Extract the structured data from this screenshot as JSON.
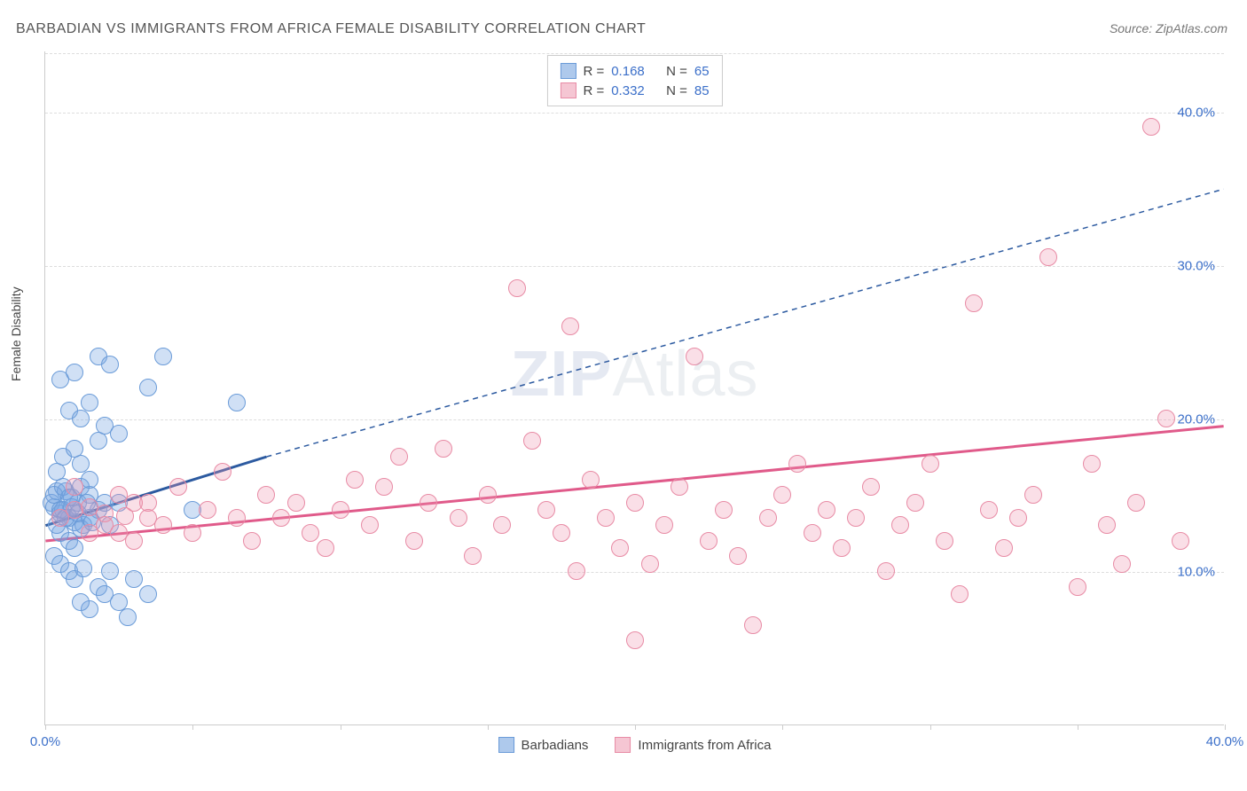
{
  "title": "BARBADIAN VS IMMIGRANTS FROM AFRICA FEMALE DISABILITY CORRELATION CHART",
  "source": "Source: ZipAtlas.com",
  "ylabel": "Female Disability",
  "watermark_bold": "ZIP",
  "watermark_light": "Atlas",
  "chart": {
    "type": "scatter",
    "xlim": [
      0,
      40
    ],
    "ylim": [
      0,
      44
    ],
    "yticks": [
      {
        "value": 10,
        "label": "10.0%"
      },
      {
        "value": 20,
        "label": "20.0%"
      },
      {
        "value": 30,
        "label": "30.0%"
      },
      {
        "value": 40,
        "label": "40.0%"
      }
    ],
    "xticks": [
      0,
      5,
      10,
      15,
      20,
      25,
      30,
      35,
      40
    ],
    "xtick_labels": [
      {
        "value": 0,
        "label": "0.0%"
      },
      {
        "value": 40,
        "label": "40.0%"
      }
    ],
    "grid_color": "#dddddd",
    "background": "#ffffff",
    "axis_color": "#cccccc",
    "tick_label_color": "#3b6fc9",
    "marker_radius": 10,
    "series": [
      {
        "name": "Barbadians",
        "fill": "rgba(120,165,225,0.35)",
        "stroke": "#6a9bd8",
        "swatch_fill": "#aec9ec",
        "swatch_stroke": "#6a9bd8",
        "trend_color": "#2c5aa0",
        "R": "0.168",
        "N": "65",
        "trend": {
          "x1": 0,
          "y1": 13.0,
          "x2": 7.5,
          "y2": 17.5,
          "dash_to_x": 40,
          "dash_to_y": 35.0
        },
        "points": [
          [
            0.2,
            14.5
          ],
          [
            0.3,
            14.2
          ],
          [
            0.4,
            15.2
          ],
          [
            0.5,
            13.8
          ],
          [
            0.6,
            14.0
          ],
          [
            0.7,
            15.2
          ],
          [
            0.8,
            13.5
          ],
          [
            0.9,
            14.8
          ],
          [
            1.0,
            13.2
          ],
          [
            1.1,
            14.5
          ],
          [
            1.2,
            15.5
          ],
          [
            1.3,
            13.0
          ],
          [
            0.5,
            12.5
          ],
          [
            0.8,
            12.0
          ],
          [
            1.0,
            11.5
          ],
          [
            1.2,
            12.8
          ],
          [
            1.5,
            13.5
          ],
          [
            1.8,
            14.0
          ],
          [
            2.0,
            14.5
          ],
          [
            1.5,
            15.0
          ],
          [
            2.2,
            13.0
          ],
          [
            2.5,
            14.5
          ],
          [
            0.4,
            16.5
          ],
          [
            0.6,
            17.5
          ],
          [
            1.0,
            18.0
          ],
          [
            1.2,
            17.0
          ],
          [
            1.5,
            16.0
          ],
          [
            1.8,
            18.5
          ],
          [
            2.0,
            19.5
          ],
          [
            0.8,
            20.5
          ],
          [
            1.2,
            20.0
          ],
          [
            1.5,
            21.0
          ],
          [
            2.5,
            19.0
          ],
          [
            0.5,
            22.5
          ],
          [
            1.0,
            23.0
          ],
          [
            1.8,
            24.0
          ],
          [
            2.2,
            23.5
          ],
          [
            4.0,
            24.0
          ],
          [
            3.5,
            22.0
          ],
          [
            6.5,
            21.0
          ],
          [
            5.0,
            14.0
          ],
          [
            0.3,
            11.0
          ],
          [
            0.5,
            10.5
          ],
          [
            0.8,
            10.0
          ],
          [
            1.0,
            9.5
          ],
          [
            1.3,
            10.2
          ],
          [
            1.8,
            9.0
          ],
          [
            2.0,
            8.5
          ],
          [
            2.5,
            8.0
          ],
          [
            1.5,
            7.5
          ],
          [
            2.8,
            7.0
          ],
          [
            3.0,
            9.5
          ],
          [
            3.5,
            8.5
          ],
          [
            2.2,
            10.0
          ],
          [
            1.2,
            8.0
          ],
          [
            0.5,
            14.0
          ],
          [
            0.7,
            13.5
          ],
          [
            0.9,
            14.2
          ],
          [
            1.1,
            13.8
          ],
          [
            1.4,
            14.5
          ],
          [
            1.6,
            13.2
          ],
          [
            0.3,
            15.0
          ],
          [
            0.4,
            13.0
          ],
          [
            0.6,
            15.5
          ],
          [
            0.8,
            14.8
          ]
        ]
      },
      {
        "name": "Immigrants from Africa",
        "fill": "rgba(240,150,175,0.30)",
        "stroke": "#e88ba5",
        "swatch_fill": "#f5c6d3",
        "swatch_stroke": "#e88ba5",
        "trend_color": "#e05a8a",
        "R": "0.332",
        "N": "85",
        "trend": {
          "x1": 0,
          "y1": 12.0,
          "x2": 40,
          "y2": 19.5
        },
        "points": [
          [
            0.5,
            13.5
          ],
          [
            1.0,
            14.0
          ],
          [
            1.5,
            12.5
          ],
          [
            2.0,
            13.8
          ],
          [
            2.5,
            15.0
          ],
          [
            2.7,
            13.6
          ],
          [
            3.0,
            12.0
          ],
          [
            3.5,
            14.5
          ],
          [
            4.0,
            13.0
          ],
          [
            4.5,
            15.5
          ],
          [
            5.0,
            12.5
          ],
          [
            5.5,
            14.0
          ],
          [
            6.0,
            16.5
          ],
          [
            6.5,
            13.5
          ],
          [
            7.0,
            12.0
          ],
          [
            7.5,
            15.0
          ],
          [
            8.0,
            13.5
          ],
          [
            8.5,
            14.5
          ],
          [
            9.0,
            12.5
          ],
          [
            9.5,
            11.5
          ],
          [
            10.0,
            14.0
          ],
          [
            10.5,
            16.0
          ],
          [
            11.0,
            13.0
          ],
          [
            11.5,
            15.5
          ],
          [
            12.0,
            17.5
          ],
          [
            12.5,
            12.0
          ],
          [
            13.0,
            14.5
          ],
          [
            13.5,
            18.0
          ],
          [
            14.0,
            13.5
          ],
          [
            14.5,
            11.0
          ],
          [
            15.0,
            15.0
          ],
          [
            15.5,
            13.0
          ],
          [
            16.0,
            28.5
          ],
          [
            16.5,
            18.5
          ],
          [
            17.0,
            14.0
          ],
          [
            17.5,
            12.5
          ],
          [
            17.8,
            26.0
          ],
          [
            18.0,
            10.0
          ],
          [
            18.5,
            16.0
          ],
          [
            19.0,
            13.5
          ],
          [
            19.5,
            11.5
          ],
          [
            20.0,
            14.5
          ],
          [
            20.5,
            10.5
          ],
          [
            21.0,
            13.0
          ],
          [
            21.5,
            15.5
          ],
          [
            22.0,
            24.0
          ],
          [
            22.5,
            12.0
          ],
          [
            23.0,
            14.0
          ],
          [
            23.5,
            11.0
          ],
          [
            24.0,
            6.5
          ],
          [
            20.0,
            5.5
          ],
          [
            24.5,
            13.5
          ],
          [
            25.0,
            15.0
          ],
          [
            25.5,
            17.0
          ],
          [
            26.0,
            12.5
          ],
          [
            26.5,
            14.0
          ],
          [
            27.0,
            11.5
          ],
          [
            27.5,
            13.5
          ],
          [
            28.0,
            15.5
          ],
          [
            28.5,
            10.0
          ],
          [
            29.0,
            13.0
          ],
          [
            29.5,
            14.5
          ],
          [
            30.0,
            17.0
          ],
          [
            30.5,
            12.0
          ],
          [
            31.0,
            8.5
          ],
          [
            31.5,
            27.5
          ],
          [
            32.0,
            14.0
          ],
          [
            32.5,
            11.5
          ],
          [
            33.0,
            13.5
          ],
          [
            33.5,
            15.0
          ],
          [
            34.0,
            30.5
          ],
          [
            35.0,
            9.0
          ],
          [
            35.5,
            17.0
          ],
          [
            36.0,
            13.0
          ],
          [
            36.5,
            10.5
          ],
          [
            37.0,
            14.5
          ],
          [
            37.5,
            39.0
          ],
          [
            38.0,
            20.0
          ],
          [
            38.5,
            12.0
          ],
          [
            1.0,
            15.5
          ],
          [
            1.5,
            14.2
          ],
          [
            2.0,
            13.0
          ],
          [
            2.5,
            12.5
          ],
          [
            3.0,
            14.5
          ],
          [
            3.5,
            13.5
          ]
        ]
      }
    ]
  },
  "legend_top": {
    "r_label": "R  =",
    "n_label": "N  ="
  },
  "legend_bottom_labels": [
    "Barbadians",
    "Immigrants from Africa"
  ]
}
